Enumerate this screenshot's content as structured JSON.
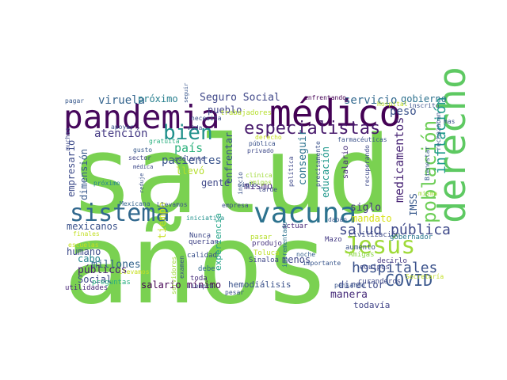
{
  "title": "Word cloud",
  "words": [
    {
      "text": "salud",
      "color": "#7ad151"
    },
    {
      "text": "años",
      "color": "#7ad151"
    },
    {
      "text": "médico",
      "color": "#440154"
    },
    {
      "text": "pandemia",
      "color": "#46085c"
    },
    {
      "text": "vacuna",
      "color": "#2c728e"
    },
    {
      "text": "derecho",
      "color": "#5ec962"
    },
    {
      "text": "especialistas",
      "color": "#481a6c"
    },
    {
      "text": "sistema",
      "color": "#31688e"
    },
    {
      "text": "Jesús",
      "color": "#9fda3a"
    },
    {
      "text": "COVID",
      "color": "#39568c"
    },
    {
      "text": "bien",
      "color": "#21918c"
    },
    {
      "text": "población",
      "color": "#6ece58"
    },
    {
      "text": "inflación",
      "color": "#1e9b8a"
    },
    {
      "text": "hospitales",
      "color": "#3b528b"
    },
    {
      "text": "salud pública",
      "color": "#3e4989"
    },
    {
      "text": "medicamentos",
      "color": "#482475"
    },
    {
      "text": "Seguro Social",
      "color": "#3f4788"
    },
    {
      "text": "viruela",
      "color": "#33638d"
    },
    {
      "text": "próximo",
      "color": "#277f8e"
    },
    {
      "text": "servicio",
      "color": "#31688e"
    },
    {
      "text": "gobierno",
      "color": "#2d718e"
    },
    {
      "text": "peso",
      "color": "#3b528b"
    },
    {
      "text": "pueblo",
      "color": "#404387"
    },
    {
      "text": "atención",
      "color": "#443983"
    },
    {
      "text": "país",
      "color": "#2db27d"
    },
    {
      "text": "pacientes",
      "color": "#3a548c"
    },
    {
      "text": "empresario",
      "color": "#3e4c8a"
    },
    {
      "text": "dimensión",
      "color": "#38598c"
    },
    {
      "text": "llevó",
      "color": "#b5de2b"
    },
    {
      "text": "enfrentar",
      "color": "#3b528b"
    },
    {
      "text": "gente",
      "color": "#3f4889"
    },
    {
      "text": "mismo",
      "color": "#472d7b"
    },
    {
      "text": "conseguir",
      "color": "#2c728e"
    },
    {
      "text": "educación",
      "color": "#1f988b"
    },
    {
      "text": "siglo",
      "color": "#453781"
    },
    {
      "text": "IMSS",
      "color": "#38598c"
    },
    {
      "text": "salario",
      "color": "#472d7b"
    },
    {
      "text": "mandato",
      "color": "#d8e219"
    },
    {
      "text": "director",
      "color": "#3e4a89"
    },
    {
      "text": "manera",
      "color": "#472c7a"
    },
    {
      "text": "todavía",
      "color": "#414487"
    },
    {
      "text": "millones",
      "color": "#33638d"
    },
    {
      "text": "tiempo",
      "color": "#c8e020"
    },
    {
      "text": "mexicanos",
      "color": "#3b528b"
    },
    {
      "text": "humano",
      "color": "#3e4c8a"
    },
    {
      "text": "cabo",
      "color": "#25848e"
    },
    {
      "text": "públicos",
      "color": "#482173"
    },
    {
      "text": "Social",
      "color": "#3e4a89"
    },
    {
      "text": "experiencia",
      "color": "#20a386"
    },
    {
      "text": "menos",
      "color": "#3f4788"
    },
    {
      "text": "salario mínimo",
      "color": "#440154"
    },
    {
      "text": "hemodiálisis",
      "color": "#3b528b"
    },
    {
      "text": "preguntas",
      "color": "#29af7f"
    },
    {
      "text": "utilidades",
      "color": "#482677"
    },
    {
      "text": "toda",
      "color": "#472d7b"
    },
    {
      "text": "debe",
      "color": "#31688e"
    },
    {
      "text": "calidad",
      "color": "#3b528b"
    },
    {
      "text": "Nunca",
      "color": "#3e4989"
    },
    {
      "text": "querían",
      "color": "#414487"
    },
    {
      "text": "pasar",
      "color": "#b5de2b"
    },
    {
      "text": "produjo",
      "color": "#46327e"
    },
    {
      "text": "Toluca",
      "color": "#bddf26"
    },
    {
      "text": "Sinaloa",
      "color": "#3f4788"
    },
    {
      "text": "actuar",
      "color": "#482878"
    },
    {
      "text": "Mazo",
      "color": "#443a83"
    },
    {
      "text": "civilización",
      "color": "#3e4a89"
    },
    {
      "text": "gobernador",
      "color": "#2a788e"
    },
    {
      "text": "aumento",
      "color": "#3b528b"
    },
    {
      "text": "Amigas",
      "color": "#8bd646"
    },
    {
      "text": "equipos",
      "color": "#3f4889"
    },
    {
      "text": "decirlo",
      "color": "#453781"
    },
    {
      "text": "curanderos",
      "color": "#3e4989"
    },
    {
      "text": "pensando",
      "color": "#3a548c"
    },
    {
      "text": "importante",
      "color": "#39568c"
    },
    {
      "text": "noche",
      "color": "#355f8d"
    },
    {
      "text": "incrementado",
      "color": "#2c728e"
    },
    {
      "text": "iniciativa",
      "color": "#21918c"
    },
    {
      "text": "empresa",
      "color": "#3e4c8a"
    },
    {
      "text": "Llevamos",
      "color": "#3b528b"
    },
    {
      "text": "Mexicana",
      "color": "#33638d"
    },
    {
      "text": "reduje",
      "color": "#3b528b"
    },
    {
      "text": "próximo",
      "color": "#25848e"
    },
    {
      "text": "médica",
      "color": "#3e4989"
    },
    {
      "text": "sector",
      "color": "#414487"
    },
    {
      "text": "gusto",
      "color": "#38598c"
    },
    {
      "text": "gratuita",
      "color": "#29af7f"
    },
    {
      "text": "adelante",
      "color": "#3e4a89"
    },
    {
      "text": "necesita",
      "color": "#3b528b"
    },
    {
      "text": "vida",
      "color": "#3b528b"
    },
    {
      "text": "trabajadores",
      "color": "#b5de2b"
    },
    {
      "text": "privado",
      "color": "#3e4989"
    },
    {
      "text": "pública",
      "color": "#3b528b"
    },
    {
      "text": "clínica",
      "color": "#a0da39"
    },
    {
      "text": "amigos",
      "color": "#9fda3a"
    },
    {
      "text": "tarde",
      "color": "#3e4989"
    },
    {
      "text": "farmacéuticas",
      "color": "#3b528b"
    },
    {
      "text": "Bienestar",
      "color": "#38598c"
    },
    {
      "text": "rechazaban",
      "color": "#39568c"
    },
    {
      "text": "misma",
      "color": "#a0da39"
    },
    {
      "text": "recuperando",
      "color": "#3e4989"
    },
    {
      "text": "dabán",
      "color": "#38598c"
    },
    {
      "text": "enfrentando",
      "color": "#440154"
    },
    {
      "text": "inscrito",
      "color": "#3b528b"
    },
    {
      "text": "pagar",
      "color": "#38598c"
    },
    {
      "text": "apoyar",
      "color": "#3b528b"
    },
    {
      "text": "muchas",
      "color": "#3e4989"
    },
    {
      "text": "seguir",
      "color": "#39568c"
    },
    {
      "text": "finales",
      "color": "#c2df23"
    },
    {
      "text": "examen",
      "color": "#3b528b"
    },
    {
      "text": "servidores",
      "color": "#9fda3a"
    },
    {
      "text": "siempre",
      "color": "#3e4989"
    },
    {
      "text": "pesar",
      "color": "#3b528b"
    },
    {
      "text": "inicio",
      "color": "#3b528b"
    },
    {
      "text": "política",
      "color": "#3e4989"
    },
    {
      "text": "precisamente",
      "color": "#3b528b"
    },
    {
      "text": "Hospital",
      "color": "#bddf26"
    },
    {
      "text": "Secretaría",
      "color": "#c2df23"
    },
    {
      "text": "escuelas",
      "color": "#c8e020"
    },
    {
      "text": "llevamos",
      "color": "#c8e020"
    },
    {
      "text": "derecho",
      "color": "#c8e020"
    },
    {
      "text": "mas",
      "color": "#3b528b"
    },
    {
      "text": "siglo",
      "color": "#3b528b"
    }
  ]
}
